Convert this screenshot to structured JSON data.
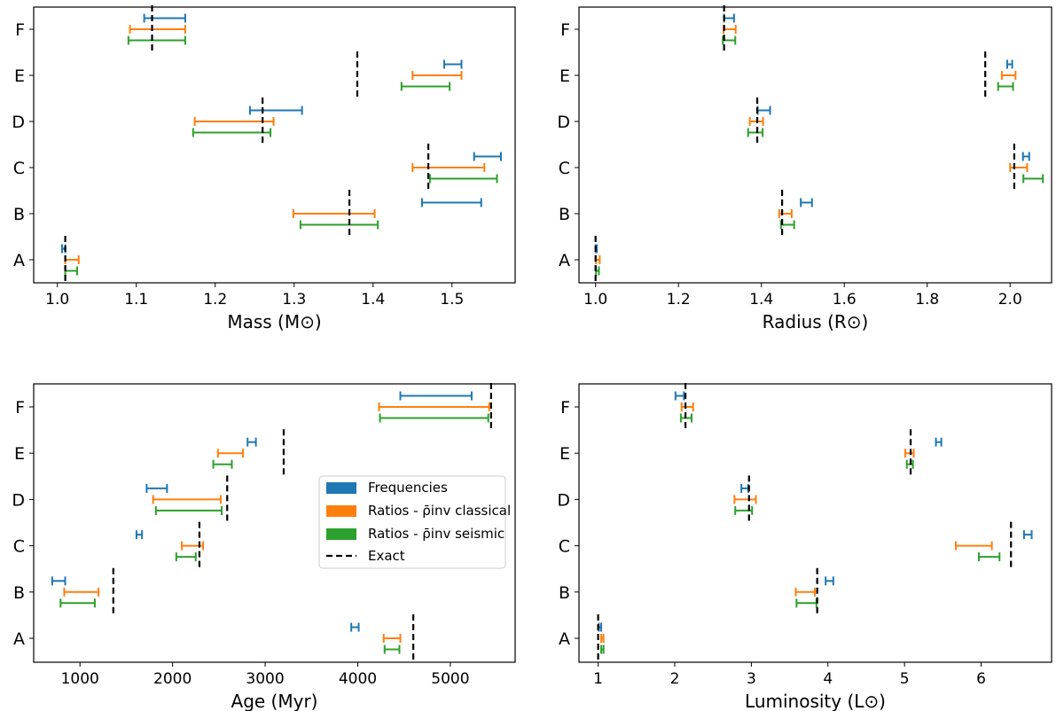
{
  "colors": {
    "frequencies": "#1f77b4",
    "ratios_classical": "#ff7f0e",
    "ratios_seismic": "#2ca02c",
    "exact": "#000000"
  },
  "legend": {
    "frequencies": "Frequencies",
    "ratios_classical": "Ratios - ρ̄inv classical",
    "ratios_seismic": "Ratios - ρ̄inv seismic",
    "exact": "Exact"
  },
  "chart_data": [
    {
      "type": "errorbar",
      "id": "mass",
      "xlabel": "Mass (M⊙)",
      "xlim": [
        0.97,
        1.58
      ],
      "xticks": [
        1.0,
        1.1,
        1.2,
        1.3,
        1.4,
        1.5
      ],
      "xtick_labels": [
        "1.0",
        "1.1",
        "1.2",
        "1.3",
        "1.4",
        "1.5"
      ],
      "categories": [
        "A",
        "B",
        "C",
        "D",
        "E",
        "F"
      ],
      "series": [
        {
          "name": "Frequencies",
          "key": "frequencies",
          "ranges": [
            [
              1.006,
              1.01
            ],
            [
              1.462,
              1.537
            ],
            [
              1.528,
              1.562
            ],
            [
              1.244,
              1.31
            ],
            [
              1.49,
              1.512
            ],
            [
              1.11,
              1.162
            ]
          ]
        },
        {
          "name": "Ratios - classical",
          "key": "ratios_classical",
          "ranges": [
            [
              1.01,
              1.027
            ],
            [
              1.299,
              1.402
            ],
            [
              1.45,
              1.541
            ],
            [
              1.174,
              1.274
            ],
            [
              1.45,
              1.512
            ],
            [
              1.092,
              1.162
            ]
          ]
        },
        {
          "name": "Ratios - seismic",
          "key": "ratios_seismic",
          "ranges": [
            [
              1.01,
              1.025
            ],
            [
              1.308,
              1.406
            ],
            [
              1.472,
              1.557
            ],
            [
              1.172,
              1.27
            ],
            [
              1.436,
              1.497
            ],
            [
              1.09,
              1.162
            ]
          ]
        }
      ],
      "exact": [
        1.01,
        1.37,
        1.47,
        1.26,
        1.38,
        1.12
      ]
    },
    {
      "type": "errorbar",
      "id": "radius",
      "xlabel": "Radius (R⊙)",
      "xlim": [
        0.96,
        2.1
      ],
      "xticks": [
        1.0,
        1.2,
        1.4,
        1.6,
        1.8,
        2.0
      ],
      "xtick_labels": [
        "1.0",
        "1.2",
        "1.4",
        "1.6",
        "1.8",
        "2.0"
      ],
      "categories": [
        "A",
        "B",
        "C",
        "D",
        "E",
        "F"
      ],
      "series": [
        {
          "name": "Frequencies",
          "key": "frequencies",
          "ranges": [
            [
              1.0,
              1.003
            ],
            [
              1.495,
              1.522
            ],
            [
              2.031,
              2.046
            ],
            [
              1.391,
              1.421
            ],
            [
              1.993,
              2.005
            ],
            [
              1.31,
              1.334
            ]
          ]
        },
        {
          "name": "Ratios - classical",
          "key": "ratios_classical",
          "ranges": [
            [
              1.001,
              1.01
            ],
            [
              1.443,
              1.473
            ],
            [
              2.0,
              2.041
            ],
            [
              1.372,
              1.404
            ],
            [
              1.98,
              2.013
            ],
            [
              1.309,
              1.338
            ]
          ]
        },
        {
          "name": "Ratios - seismic",
          "key": "ratios_seismic",
          "ranges": [
            [
              1.001,
              1.008
            ],
            [
              1.447,
              1.479
            ],
            [
              2.032,
              2.079
            ],
            [
              1.368,
              1.403
            ],
            [
              1.971,
              2.007
            ],
            [
              1.307,
              1.337
            ]
          ]
        }
      ],
      "exact": [
        1.0,
        1.45,
        2.01,
        1.39,
        1.94,
        1.31
      ]
    },
    {
      "type": "errorbar",
      "id": "age",
      "xlabel": "Age (Myr)",
      "xlim": [
        500,
        5700
      ],
      "xticks": [
        1000,
        2000,
        3000,
        4000,
        5000
      ],
      "xtick_labels": [
        "1000",
        "2000",
        "3000",
        "4000",
        "5000"
      ],
      "categories": [
        "A",
        "B",
        "C",
        "D",
        "E",
        "F"
      ],
      "series": [
        {
          "name": "Frequencies",
          "key": "frequencies",
          "ranges": [
            [
              3930,
              4010
            ],
            [
              700,
              840
            ],
            [
              1610,
              1670
            ],
            [
              1720,
              1940
            ],
            [
              2810,
              2900
            ],
            [
              4460,
              5230
            ]
          ]
        },
        {
          "name": "Ratios - classical",
          "key": "ratios_classical",
          "ranges": [
            [
              4280,
              4460
            ],
            [
              830,
              1200
            ],
            [
              2100,
              2330
            ],
            [
              1790,
              2520
            ],
            [
              2490,
              2760
            ],
            [
              4230,
              5420
            ]
          ]
        },
        {
          "name": "Ratios - seismic",
          "key": "ratios_seismic",
          "ranges": [
            [
              4290,
              4450
            ],
            [
              790,
              1160
            ],
            [
              2040,
              2250
            ],
            [
              1820,
              2530
            ],
            [
              2440,
              2640
            ],
            [
              4240,
              5410
            ]
          ]
        }
      ],
      "exact": [
        4600,
        1360,
        2290,
        2590,
        3200,
        5440
      ]
    },
    {
      "type": "errorbar",
      "id": "luminosity",
      "xlabel": "Luminosity (L⊙)",
      "xlim": [
        0.75,
        6.92
      ],
      "xticks": [
        1,
        2,
        3,
        4,
        5,
        6
      ],
      "xtick_labels": [
        "1",
        "2",
        "3",
        "4",
        "5",
        "6"
      ],
      "categories": [
        "A",
        "B",
        "C",
        "D",
        "E",
        "F"
      ],
      "series": [
        {
          "name": "Frequencies",
          "key": "frequencies",
          "ranges": [
            [
              1.01,
              1.04
            ],
            [
              3.97,
              4.07
            ],
            [
              6.56,
              6.66
            ],
            [
              2.87,
              2.96
            ],
            [
              5.41,
              5.48
            ],
            [
              2.01,
              2.12
            ]
          ]
        },
        {
          "name": "Ratios - classical",
          "key": "ratios_classical",
          "ranges": [
            [
              1.04,
              1.07
            ],
            [
              3.58,
              3.83
            ],
            [
              5.67,
              6.14
            ],
            [
              2.78,
              3.06
            ],
            [
              5.01,
              5.12
            ],
            [
              2.09,
              2.24
            ]
          ]
        },
        {
          "name": "Ratios - seismic",
          "key": "ratios_seismic",
          "ranges": [
            [
              1.04,
              1.07
            ],
            [
              3.59,
              3.85
            ],
            [
              5.97,
              6.24
            ],
            [
              2.79,
              3.01
            ],
            [
              5.03,
              5.11
            ],
            [
              2.08,
              2.22
            ]
          ]
        }
      ],
      "exact": [
        1.0,
        3.86,
        6.39,
        2.97,
        5.08,
        2.14
      ]
    }
  ]
}
